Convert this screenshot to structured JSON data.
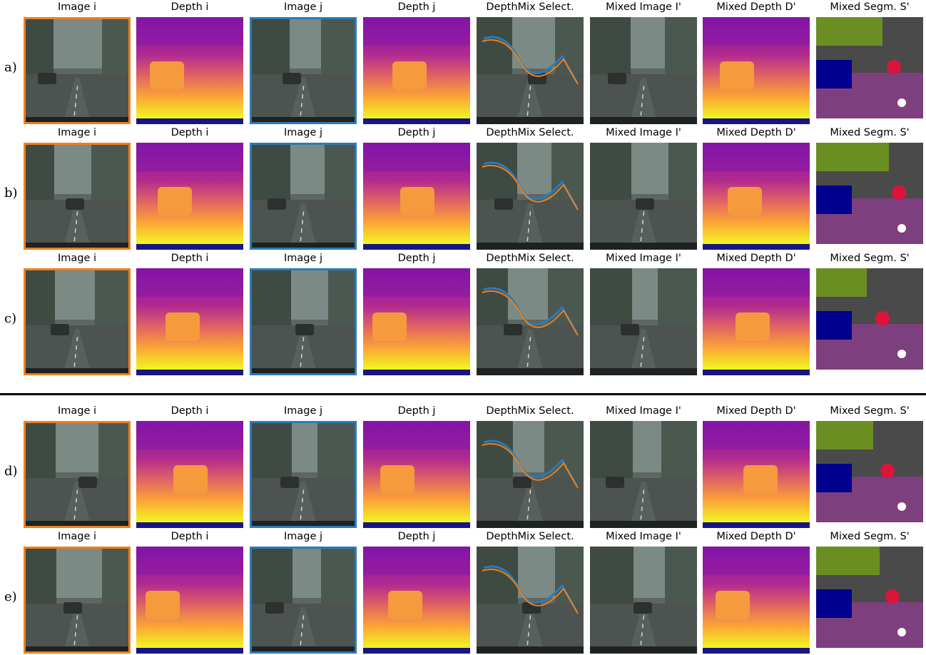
{
  "headers": [
    "Image i",
    "Depth i",
    "Image j",
    "Depth j",
    "DepthMix Select.",
    "Mixed Image I'",
    "Mixed Depth D'",
    "Mixed Segm. S'"
  ],
  "rows": [
    {
      "label": "a)"
    },
    {
      "label": "b)"
    },
    {
      "label": "c)"
    },
    {
      "label": "d)"
    },
    {
      "label": "e)"
    }
  ],
  "colors": {
    "frame_image_i": "#f07f1a",
    "frame_image_j": "#2b7bb8",
    "depth_far": "#0d0887",
    "depth_mid": "#cc4778",
    "depth_near": "#f0f921"
  }
}
